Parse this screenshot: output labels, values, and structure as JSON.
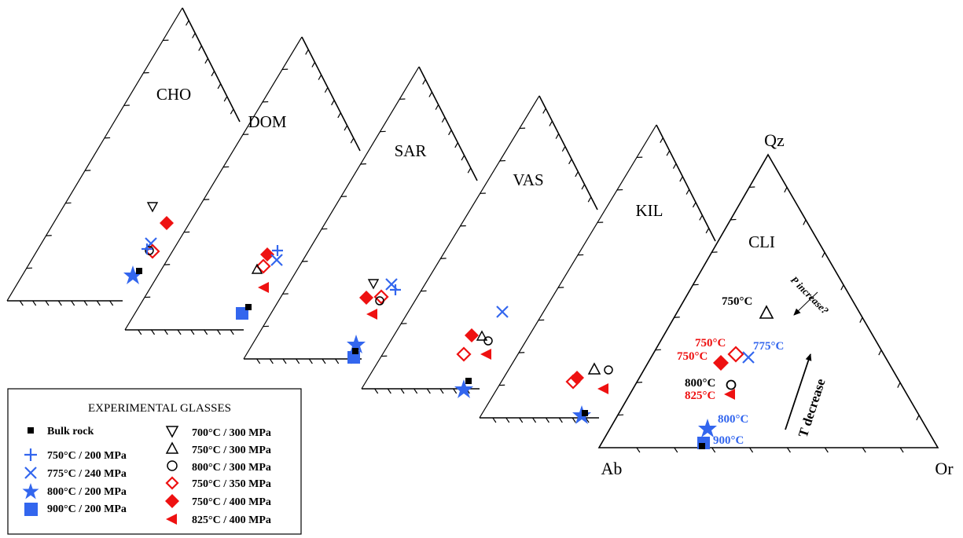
{
  "colors": {
    "blue": "#3366ee",
    "red": "#ee1111",
    "black": "#000000"
  },
  "corners": {
    "apex": "Qz",
    "left": "Ab",
    "right": "Or"
  },
  "diagrams": [
    {
      "label": "CHO"
    },
    {
      "label": "DOM"
    },
    {
      "label": "SAR"
    },
    {
      "label": "VAS"
    },
    {
      "label": "KIL"
    },
    {
      "label": "CLI"
    }
  ],
  "annotations": {
    "t750_black": "750°C",
    "t750_red_a": "750°C",
    "t750_red_b": "750°C",
    "t775": "775°C",
    "t800_black": "800°C",
    "t825": "825°C",
    "t800_blue": "800°C",
    "t900": "900°C",
    "p_increase": "P increase?",
    "t_decrease": "T decrease"
  },
  "legend": {
    "title": "EXPERIMENTAL GLASSES",
    "entries": [
      {
        "label": "Bulk rock",
        "marker": "square-small-black"
      },
      {
        "label": "750°C / 200 MPa",
        "marker": "plus-blue"
      },
      {
        "label": "775°C / 240 MPa",
        "marker": "cross-blue"
      },
      {
        "label": "800°C / 200 MPa",
        "marker": "star-blue"
      },
      {
        "label": "900°C / 200 MPa",
        "marker": "square-blue"
      },
      {
        "label": "700°C / 300 MPa",
        "marker": "triangle-down-open-black"
      },
      {
        "label": "750°C / 300 MPa",
        "marker": "triangle-up-open-black"
      },
      {
        "label": "800°C / 300 MPa",
        "marker": "circle-open-black"
      },
      {
        "label": "750°C / 350 MPa",
        "marker": "diamond-open-red"
      },
      {
        "label": "750°C / 400 MPa",
        "marker": "diamond-filled-red"
      },
      {
        "label": "825°C / 400 MPa",
        "marker": "triangle-left-filled-red"
      }
    ]
  }
}
